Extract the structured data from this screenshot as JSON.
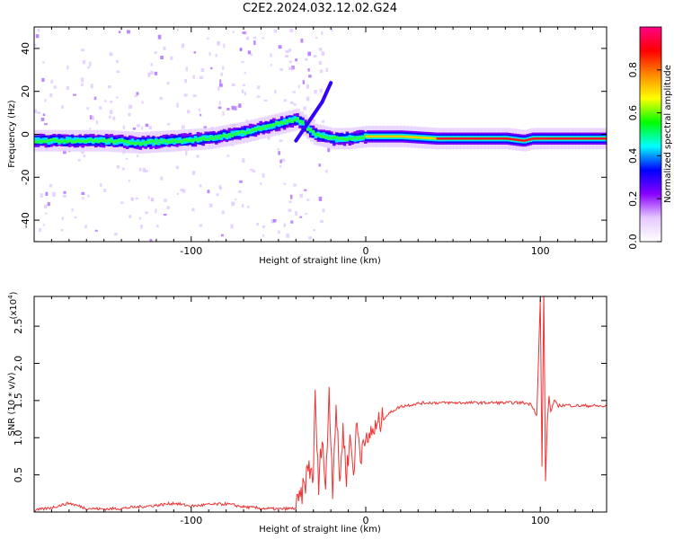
{
  "title": "C2E2.2024.032.12.02.G24",
  "chart_data": [
    {
      "type": "heatmap",
      "name": "spectrogram",
      "xlabel": "Height of straight line (km)",
      "ylabel": "Frequency (Hz)",
      "xlim": [
        -190,
        138
      ],
      "ylim": [
        -50,
        50
      ],
      "xticks": [
        -100,
        0,
        100
      ],
      "xtick_labels": [
        "-100",
        "0",
        "100"
      ],
      "yticks": [
        -40,
        -20,
        0,
        20,
        40
      ],
      "ytick_labels": [
        "-40",
        "-20",
        "0",
        "20",
        "40"
      ],
      "colorbar": {
        "label": "Normalized spectral amplitude",
        "range": [
          0,
          1
        ],
        "ticks": [
          0.0,
          0.2,
          0.4,
          0.6,
          0.8
        ],
        "tick_labels": [
          "0.0",
          "0.2",
          "0.4",
          "0.6",
          "0.8"
        ],
        "colors": [
          "#ffffff",
          "#e6c8ff",
          "#8800ff",
          "#0000ff",
          "#00ffff",
          "#00ff00",
          "#ffff00",
          "#ff8800",
          "#ff0000",
          "#ff0088"
        ]
      },
      "trace": {
        "name": "main frequency ridge",
        "x": [
          -190,
          -170,
          -150,
          -130,
          -110,
          -90,
          -70,
          -55,
          -40,
          -30,
          -20,
          -10,
          0,
          20,
          40,
          60,
          80,
          90,
          95,
          100,
          110,
          138
        ],
        "y": [
          -3,
          -3,
          -3,
          -4,
          -3,
          -2,
          1,
          4,
          7,
          0,
          -2,
          -2,
          -1,
          -1,
          -2,
          -2,
          -2,
          -3,
          -2,
          -2,
          -2,
          -2
        ]
      },
      "branch": {
        "name": "rising branch",
        "x": [
          -40,
          -35,
          -30,
          -25,
          -20
        ],
        "y": [
          -3,
          3,
          9,
          15,
          24
        ]
      }
    },
    {
      "type": "line",
      "name": "snr",
      "xlabel": "Height of straight line (km)",
      "ylabel": "SNR (10 * v/v)",
      "y_multiplier": "(x10",
      "y_multiplier_exp": "4",
      "xlim": [
        -190,
        138
      ],
      "ylim": [
        0,
        2.9
      ],
      "xticks": [
        -100,
        0,
        100
      ],
      "xtick_labels": [
        "-100",
        "0",
        "100"
      ],
      "yticks": [
        0.5,
        1.0,
        1.5,
        2.0,
        2.5
      ],
      "ytick_labels": [
        "0.5",
        "1.0",
        "1.5",
        "2.0",
        "2.5"
      ],
      "color": "#ee3333",
      "series": [
        {
          "name": "SNR",
          "x": [
            -190,
            -180,
            -170,
            -160,
            -150,
            -140,
            -130,
            -120,
            -110,
            -100,
            -90,
            -80,
            -70,
            -60,
            -50,
            -40,
            -38,
            -35,
            -33,
            -30,
            -29,
            -27,
            -25,
            -23,
            -21,
            -19,
            -17,
            -15,
            -13,
            -11,
            -9,
            -7,
            -5,
            -3,
            -1,
            1,
            3,
            5,
            8,
            12,
            16,
            20,
            25,
            30,
            35,
            40,
            50,
            60,
            70,
            80,
            90,
            95,
            98,
            100,
            101,
            102,
            103,
            104,
            105,
            106,
            108,
            110,
            115,
            120,
            130,
            138
          ],
          "y": [
            0.02,
            0.06,
            0.12,
            0.05,
            0.04,
            0.05,
            0.07,
            0.09,
            0.12,
            0.08,
            0.1,
            0.11,
            0.07,
            0.05,
            0.04,
            0.05,
            0.15,
            0.35,
            0.6,
            0.5,
            1.55,
            0.3,
            1.1,
            0.25,
            1.65,
            0.35,
            1.45,
            0.4,
            1.1,
            0.5,
            1.0,
            0.55,
            1.2,
            0.7,
            1.1,
            0.85,
            1.1,
            1.1,
            1.2,
            1.3,
            1.37,
            1.42,
            1.44,
            1.46,
            1.47,
            1.47,
            1.47,
            1.47,
            1.47,
            1.47,
            1.47,
            1.45,
            1.3,
            2.85,
            0.6,
            2.95,
            0.4,
            1.2,
            1.55,
            1.35,
            1.5,
            1.43,
            1.44,
            1.43,
            1.43,
            1.42
          ]
        }
      ]
    }
  ]
}
